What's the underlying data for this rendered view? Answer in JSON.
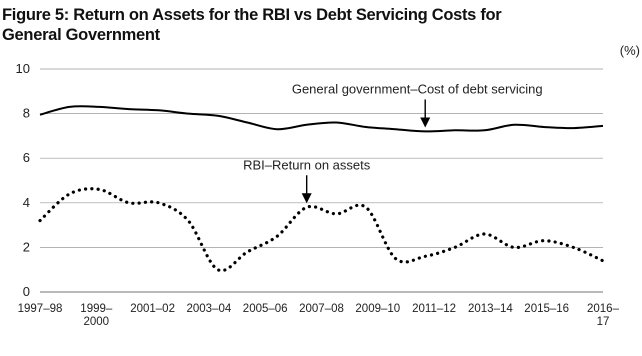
{
  "chart_data": {
    "type": "line",
    "title_line1": "Figure 5: Return on Assets for the RBI vs Debt Servicing Costs for",
    "title_line2": "General Government",
    "unit": "(%)",
    "ylim": [
      0,
      10
    ],
    "yticks": [
      "0",
      "2",
      "4",
      "6",
      "8",
      "10"
    ],
    "grid": true,
    "x_labels": [
      {
        "line1": "1997–98",
        "line2": ""
      },
      {
        "line1": "1999–",
        "line2": "2000"
      },
      {
        "line1": "2001–02",
        "line2": ""
      },
      {
        "line1": "2003–04",
        "line2": ""
      },
      {
        "line1": "2005–06",
        "line2": ""
      },
      {
        "line1": "2007–08",
        "line2": ""
      },
      {
        "line1": "2009–10",
        "line2": ""
      },
      {
        "line1": "2011–12",
        "line2": ""
      },
      {
        "line1": "2013–14",
        "line2": ""
      },
      {
        "line1": "2015–16",
        "line2": ""
      },
      {
        "line1": "2016–",
        "line2": "17"
      }
    ],
    "x": [
      1997,
      1998,
      1999,
      2000,
      2001,
      2002,
      2003,
      2004,
      2005,
      2006,
      2007,
      2008,
      2009,
      2010,
      2011,
      2012,
      2013,
      2014,
      2015,
      2016
    ],
    "series": [
      {
        "style": "solid",
        "values": [
          7.95,
          8.3,
          8.3,
          8.2,
          8.15,
          8.0,
          7.9,
          7.6,
          7.3,
          7.5,
          7.6,
          7.4,
          7.3,
          7.2,
          7.25,
          7.25,
          7.5,
          7.4,
          7.35,
          7.45
        ],
        "annotation": "General government–Cost of debt servicing",
        "arrow_at_x": 2010
      },
      {
        "style": "dotted",
        "values": [
          3.2,
          4.4,
          4.6,
          4.0,
          4.0,
          3.2,
          1.0,
          1.8,
          2.5,
          3.8,
          3.5,
          3.8,
          1.5,
          1.6,
          2.0,
          2.6,
          2.0,
          2.3,
          2.0,
          1.4
        ],
        "annotation": "RBI–Return on assets",
        "arrow_at_x": 2006
      }
    ]
  }
}
